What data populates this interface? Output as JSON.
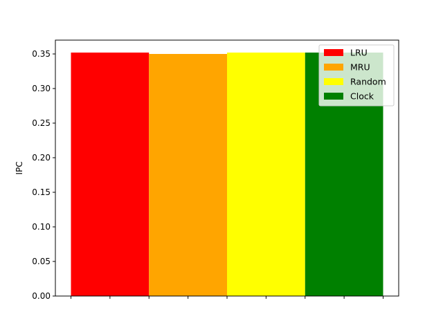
{
  "chart_data": {
    "type": "bar",
    "ylabel": "IPC",
    "ylim": [
      0,
      0.37
    ],
    "yticks": [
      0.0,
      0.05,
      0.1,
      0.15,
      0.2,
      0.25,
      0.3,
      0.35
    ],
    "ytick_labels": [
      "0.00",
      "0.05",
      "0.10",
      "0.15",
      "0.20",
      "0.25",
      "0.30",
      "0.35"
    ],
    "series": [
      {
        "name": "LRU",
        "value": 0.352,
        "color": "#ff0000"
      },
      {
        "name": "MRU",
        "value": 0.35,
        "color": "#ffa500"
      },
      {
        "name": "Random",
        "value": 0.352,
        "color": "#ffff00"
      },
      {
        "name": "Clock",
        "value": 0.352,
        "color": "#008000"
      }
    ],
    "xtick_labels": [],
    "grid": false,
    "legend_position": "upper right"
  }
}
